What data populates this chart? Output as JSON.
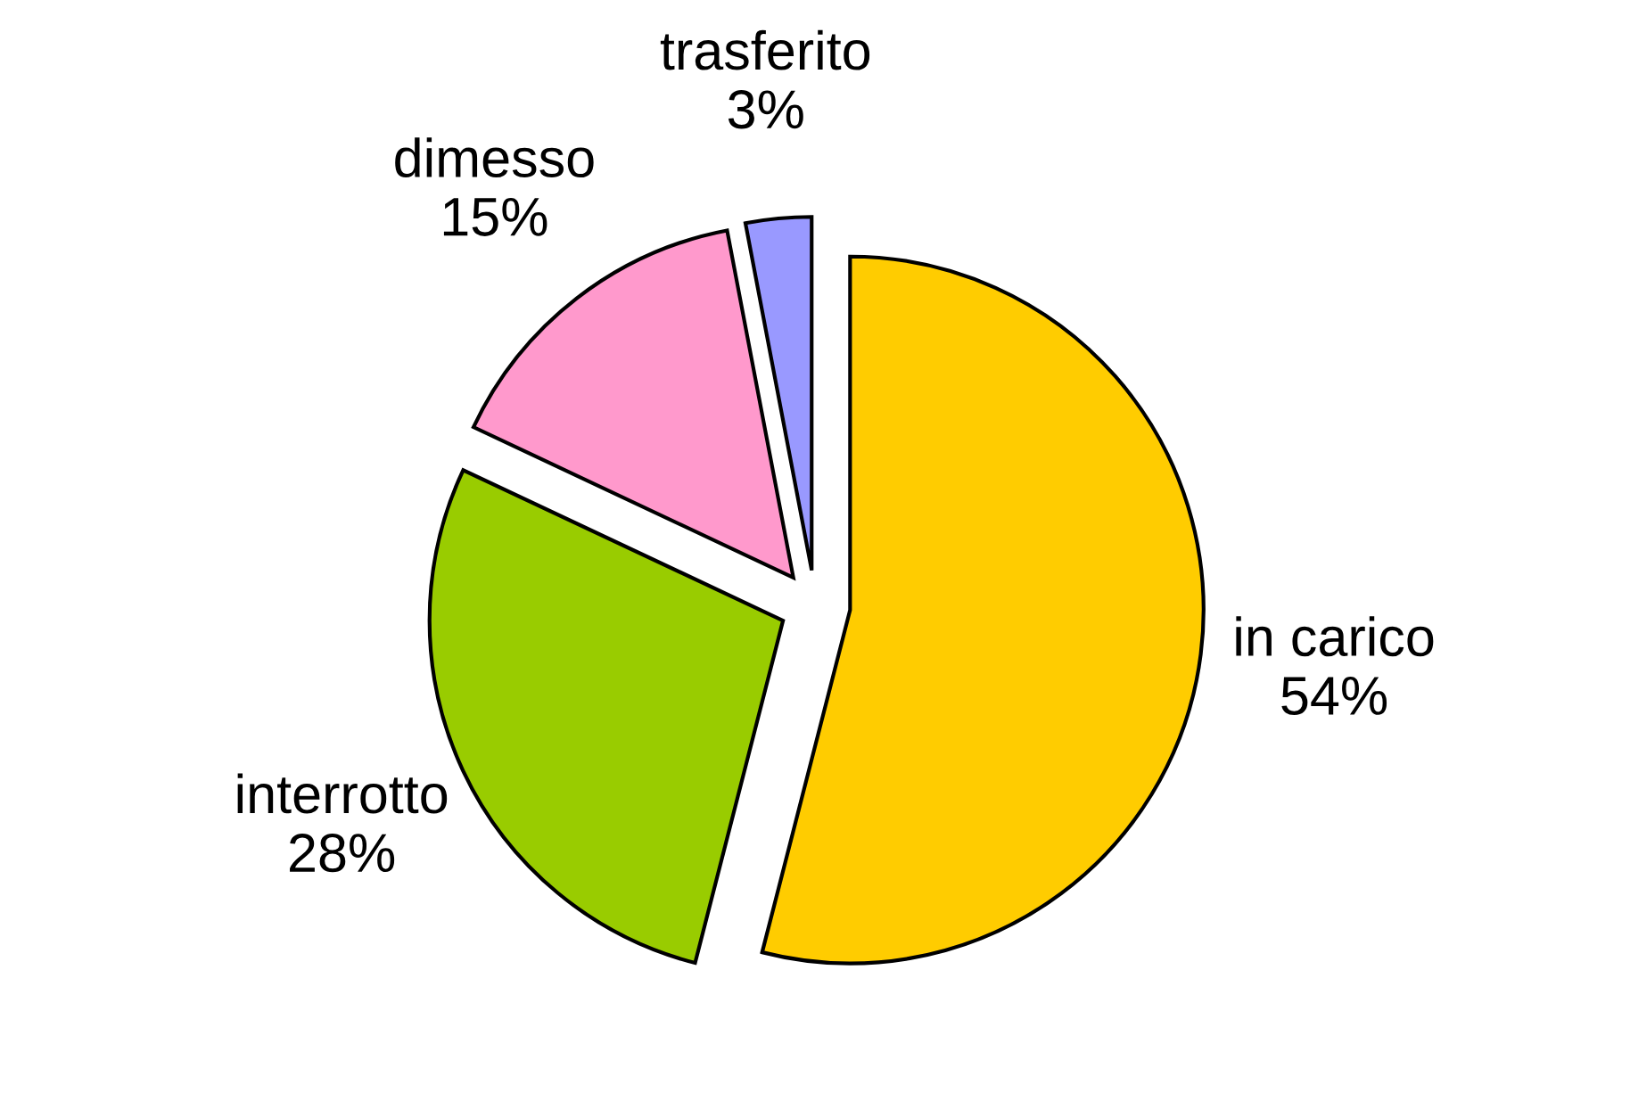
{
  "chart_data": {
    "type": "pie",
    "categories": [
      "in carico",
      "interrotto",
      "dimesso",
      "trasferito"
    ],
    "values": [
      54,
      28,
      15,
      3
    ],
    "value_labels": [
      "54%",
      "28%",
      "15%",
      "3%"
    ],
    "colors": [
      "#ffcc00",
      "#99cc00",
      "#ff99cc",
      "#9999ff"
    ],
    "legend": false
  }
}
